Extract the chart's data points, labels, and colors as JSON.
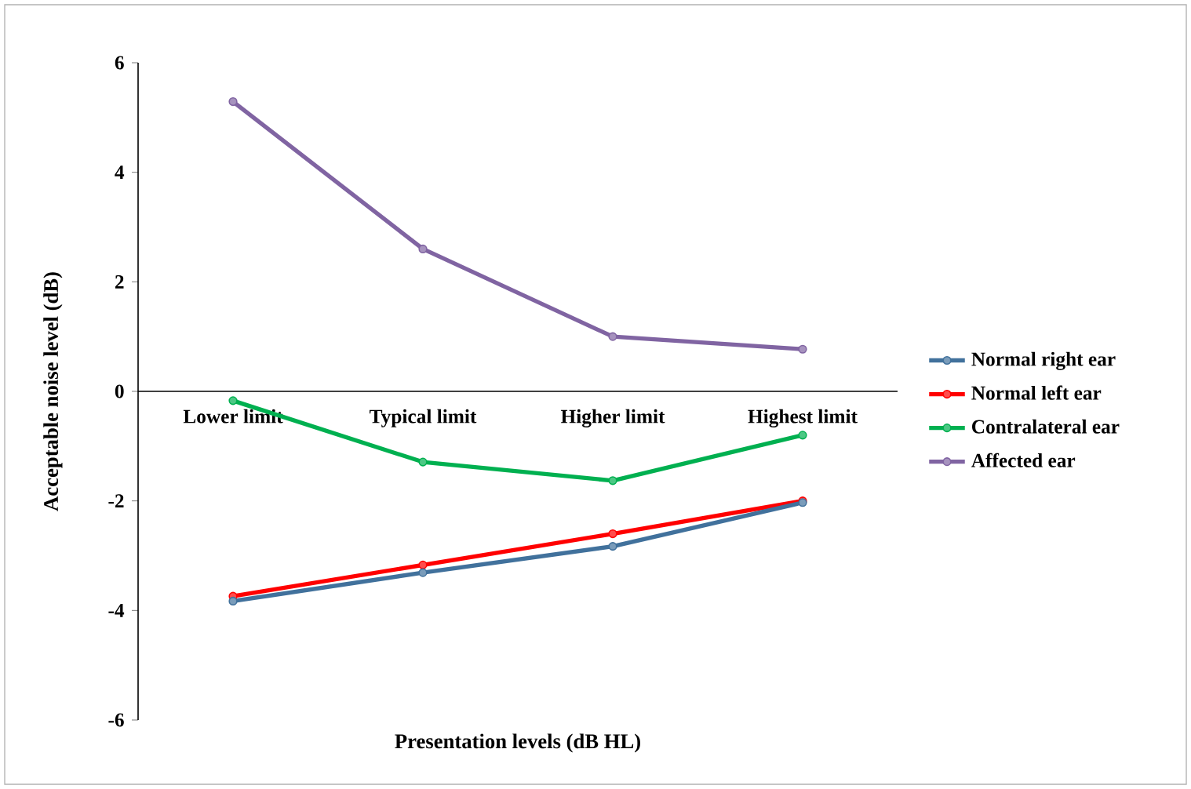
{
  "chart_data": {
    "type": "line",
    "xlabel": "Presentation levels (dB HL)",
    "ylabel": "Acceptable noise level (dB)",
    "categories": [
      "Lower limit",
      "Typical limit",
      "Higher limit",
      "Highest limit"
    ],
    "series": [
      {
        "name": "Normal right ear",
        "color": "#41719c",
        "values": [
          -3.83,
          -3.31,
          -2.83,
          -2.03
        ]
      },
      {
        "name": "Normal left ear",
        "color": "#ff0000",
        "values": [
          -3.74,
          -3.17,
          -2.6,
          -2.0
        ]
      },
      {
        "name": "Contralateral ear",
        "color": "#00b050",
        "values": [
          -0.17,
          -1.29,
          -1.63,
          -0.8
        ]
      },
      {
        "name": "Affected ear",
        "color": "#8064a2",
        "values": [
          5.29,
          2.6,
          1.0,
          0.77
        ]
      }
    ],
    "ylim": [
      -6,
      6
    ],
    "yticks": [
      -6,
      -4,
      -2,
      0,
      2,
      4,
      6
    ],
    "legend": "right",
    "marker": "circle"
  }
}
